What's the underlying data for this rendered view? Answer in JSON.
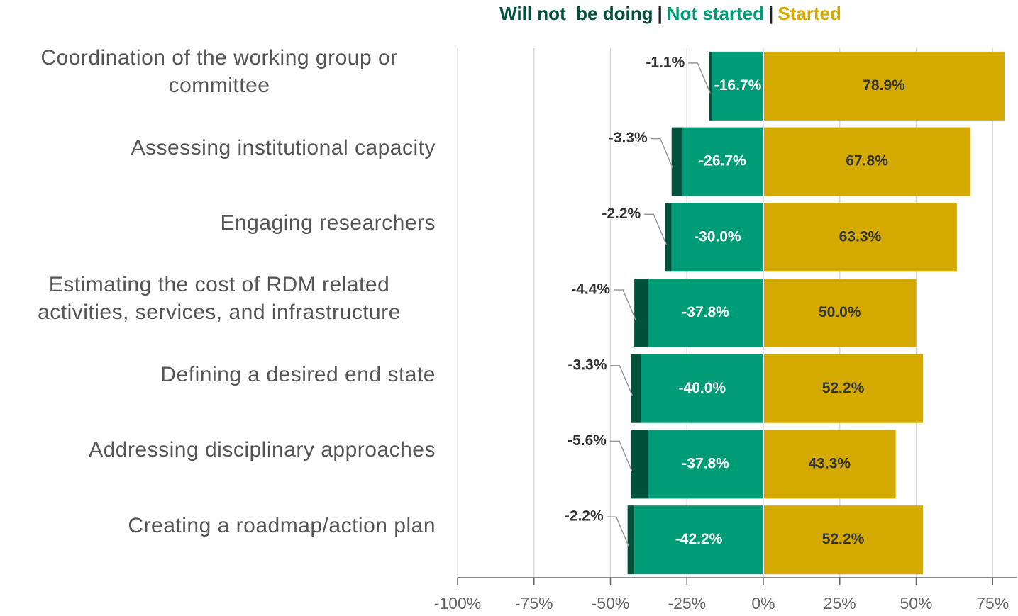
{
  "chart_data": {
    "type": "diverging_stacked_bar",
    "orientation": "horizontal",
    "legend_separator": "|",
    "categories": [
      "Coordination of the working group or committee",
      "Assessing institutional capacity",
      "Engaging researchers",
      "Estimating the cost of RDM related activities, services, and infrastructure",
      "Defining a desired end state",
      "Addressing disciplinary approaches",
      "Creating a roadmap/action plan"
    ],
    "series": [
      {
        "name": "Will not  be doing",
        "color": "#00513a",
        "values": [
          -1.1,
          -3.3,
          -2.2,
          -4.4,
          -3.3,
          -5.6,
          -2.2
        ],
        "value_labels": [
          "-1.1%",
          "-3.3%",
          "-2.2%",
          "-4.4%",
          "-3.3%",
          "-5.6%",
          "-2.2%"
        ]
      },
      {
        "name": "Not started",
        "color": "#009b77",
        "values": [
          -16.7,
          -26.7,
          -30.0,
          -37.8,
          -40.0,
          -37.8,
          -42.2
        ],
        "value_labels": [
          "-16.7%",
          "-26.7%",
          "-30.0%",
          "-37.8%",
          "-40.0%",
          "-37.8%",
          "-42.2%"
        ]
      },
      {
        "name": "Started",
        "color": "#d4aa00",
        "values": [
          78.9,
          67.8,
          63.3,
          50.0,
          52.2,
          43.3,
          52.2
        ],
        "value_labels": [
          "78.9%",
          "67.8%",
          "63.3%",
          "50.0%",
          "52.2%",
          "43.3%",
          "52.2%"
        ]
      }
    ],
    "xlim": [
      -100,
      83
    ],
    "xticks": [
      {
        "value": -100,
        "label": "-100%"
      },
      {
        "value": -75,
        "label": "-75%"
      },
      {
        "value": -50,
        "label": "-50%"
      },
      {
        "value": -25,
        "label": "-25%"
      },
      {
        "value": 0,
        "label": "0%"
      },
      {
        "value": 25,
        "label": "25%"
      },
      {
        "value": 50,
        "label": "50%"
      },
      {
        "value": 75,
        "label": "75%"
      }
    ],
    "grid": true
  }
}
